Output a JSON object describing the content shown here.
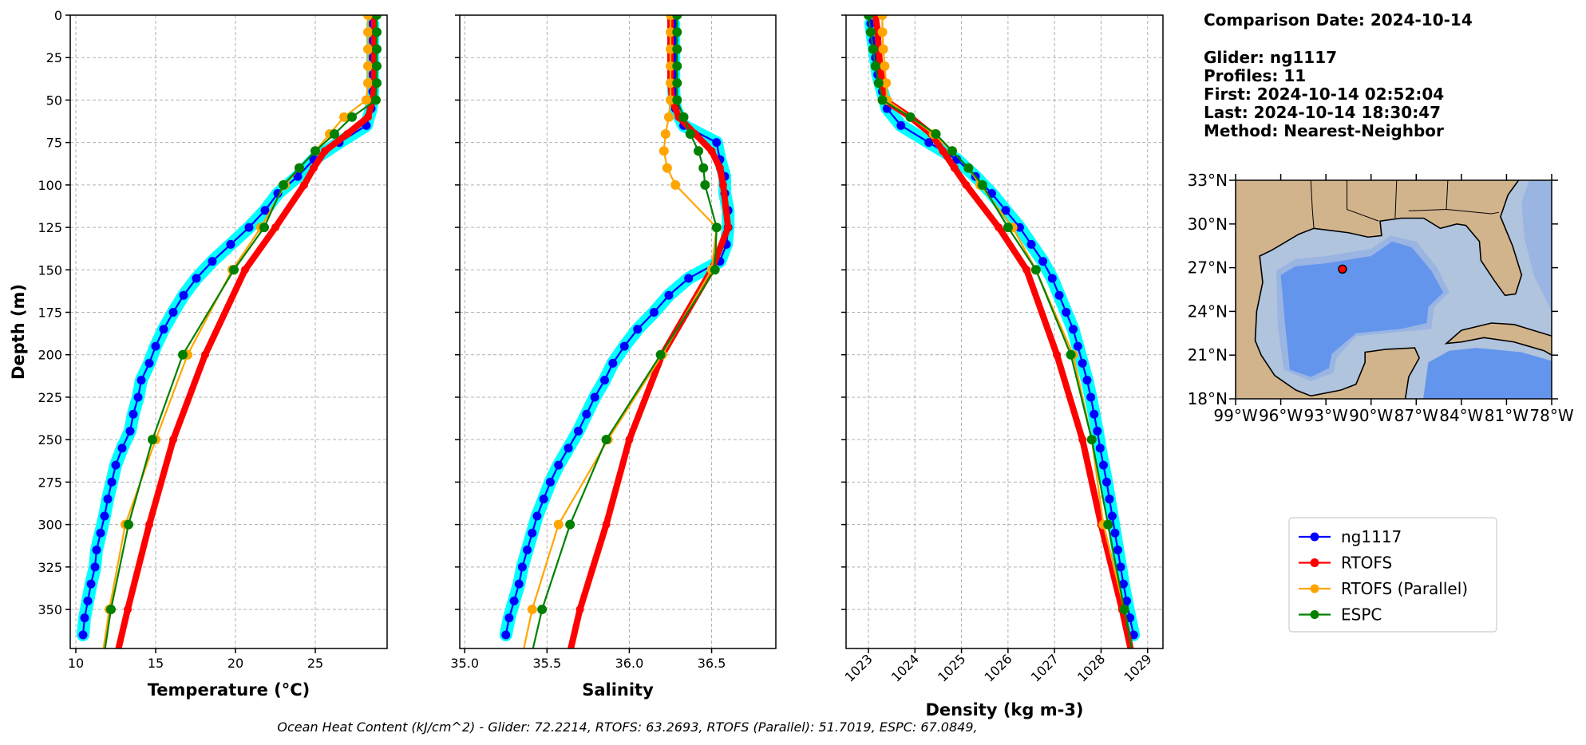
{
  "info": {
    "comparison_date": "Comparison Date: 2024-10-14",
    "glider": "Glider: ng1117",
    "profiles": "Profiles: 11",
    "first": "First: 2024-10-14 02:52:04",
    "last": "Last: 2024-10-14 18:30:47",
    "method": "Method: Nearest-Neighbor"
  },
  "footer": "Ocean Heat Content (kJ/cm^2) - Glider: 72.2214,  RTOFS: 63.2693,  RTOFS (Parallel): 51.7019,  ESPC: 67.0849,",
  "legend": {
    "placement": "lower-right",
    "entries": [
      {
        "label": "ng1117",
        "color": "#0000ff"
      },
      {
        "label": "RTOFS",
        "color": "#ff0000"
      },
      {
        "label": "RTOFS (Parallel)",
        "color": "#ffa500"
      },
      {
        "label": "ESPC",
        "color": "#008000"
      }
    ]
  },
  "colors": {
    "glider": "#0000ff",
    "glider_profiles": "#00ffff",
    "rtofs": "#ff0000",
    "rtofs_parallel": "#ffa500",
    "espc": "#008000"
  },
  "map": {
    "lon_range": [
      -99,
      -78
    ],
    "lat_range": [
      18,
      33
    ],
    "lat_ticks": [
      "33°N",
      "30°N",
      "27°N",
      "24°N",
      "21°N",
      "18°N"
    ],
    "lat_values": [
      33,
      30,
      27,
      24,
      21,
      18
    ],
    "lon_ticks": [
      "99°W",
      "96°W",
      "93°W",
      "90°W",
      "87°W",
      "84°W",
      "81°W",
      "78°W"
    ],
    "lon_values": [
      -99,
      -96,
      -93,
      -90,
      -87,
      -84,
      -81,
      -78
    ],
    "glider_location": {
      "lon": -91.9,
      "lat": 26.9
    },
    "colors": {
      "land": "#d2b48c",
      "shelf": "#b0c4de",
      "slope": "#9ab5e2",
      "deep": "#6495ed",
      "marker": "#ff0000"
    }
  },
  "chart_data": [
    {
      "type": "line",
      "xlabel": "Temperature (°C)",
      "ylabel": "Depth (m)",
      "xlim": [
        9.65,
        29.5
      ],
      "ylim": [
        373,
        0
      ],
      "xticks": [
        10,
        15,
        20,
        25
      ],
      "xtick_labels": [
        "10",
        "15",
        "20",
        "25"
      ],
      "yticks": [
        0,
        25,
        50,
        75,
        100,
        125,
        150,
        175,
        200,
        225,
        250,
        275,
        300,
        325,
        350
      ],
      "ytick_labels": [
        "0",
        "25",
        "50",
        "75",
        "100",
        "125",
        "150",
        "175",
        "200",
        "225",
        "250",
        "275",
        "300",
        "325",
        "350"
      ],
      "grid": true,
      "glider_depth": [
        5,
        15,
        25,
        35,
        45,
        55,
        65,
        75,
        85,
        95,
        105,
        115,
        125,
        135,
        145,
        155,
        165,
        175,
        185,
        195,
        205,
        215,
        225,
        235,
        245,
        255,
        265,
        275,
        285,
        295,
        305,
        315,
        325,
        335,
        345,
        355,
        365
      ],
      "model_depth": [
        0,
        10,
        20,
        30,
        40,
        50,
        60,
        70,
        80,
        90,
        100,
        125,
        150,
        200,
        250,
        300,
        350,
        400
      ],
      "series": [
        {
          "name": "ng1117",
          "values": [
            28.6,
            28.6,
            28.6,
            28.6,
            28.6,
            28.5,
            28.2,
            26.5,
            24.9,
            23.9,
            22.65,
            21.85,
            20.85,
            19.7,
            18.55,
            17.55,
            16.75,
            16.1,
            15.5,
            15.0,
            14.6,
            14.1,
            13.9,
            13.6,
            13.4,
            12.9,
            12.5,
            12.25,
            12.0,
            11.8,
            11.55,
            11.3,
            11.2,
            10.95,
            10.75,
            10.55,
            10.45
          ]
        },
        {
          "name": "RTOFS",
          "values": [
            28.7,
            28.7,
            28.7,
            28.7,
            28.7,
            28.6,
            28.3,
            27.0,
            25.6,
            24.9,
            24.3,
            22.5,
            20.6,
            18.1,
            16.1,
            14.6,
            13.25,
            12.0
          ]
        },
        {
          "name": "RTOFS (Parallel)",
          "values": [
            28.3,
            28.3,
            28.3,
            28.3,
            28.3,
            28.2,
            26.8,
            25.9,
            25.0,
            24.0,
            23.1,
            21.6,
            19.8,
            17.0,
            15.0,
            13.1,
            12.1,
            11.3
          ]
        },
        {
          "name": "ESPC",
          "values": [
            28.85,
            28.85,
            28.85,
            28.85,
            28.85,
            28.8,
            27.3,
            26.2,
            25.0,
            24.0,
            23.0,
            21.8,
            19.9,
            16.7,
            14.8,
            13.3,
            12.2,
            11.4
          ]
        }
      ]
    },
    {
      "type": "line",
      "xlabel": "Salinity",
      "xlim": [
        34.97,
        36.89
      ],
      "ylim": [
        373,
        0
      ],
      "xticks": [
        35.0,
        35.5,
        36.0,
        36.5
      ],
      "xtick_labels": [
        "35.0",
        "35.5",
        "36.0",
        "36.5"
      ],
      "grid": true,
      "series": [
        {
          "name": "ng1117",
          "values": [
            36.27,
            36.27,
            36.27,
            36.27,
            36.27,
            36.28,
            36.33,
            36.53,
            36.55,
            36.58,
            36.58,
            36.6,
            36.6,
            36.59,
            36.55,
            36.36,
            36.24,
            36.15,
            36.05,
            35.97,
            35.9,
            35.85,
            35.79,
            35.74,
            35.69,
            35.63,
            35.57,
            35.52,
            35.48,
            35.44,
            35.41,
            35.38,
            35.35,
            35.33,
            35.3,
            35.27,
            35.25
          ]
        },
        {
          "name": "RTOFS",
          "values": [
            36.25,
            36.25,
            36.25,
            36.25,
            36.25,
            36.26,
            36.3,
            36.4,
            36.5,
            36.55,
            36.57,
            36.6,
            36.5,
            36.2,
            36.0,
            35.86,
            35.7,
            35.58
          ]
        },
        {
          "name": "RTOFS (Parallel)",
          "values": [
            36.25,
            36.25,
            36.25,
            36.25,
            36.25,
            36.25,
            36.24,
            36.22,
            36.21,
            36.23,
            36.28,
            36.53,
            36.5,
            36.2,
            35.87,
            35.57,
            35.41,
            35.3
          ]
        },
        {
          "name": "ESPC",
          "values": [
            36.29,
            36.29,
            36.29,
            36.29,
            36.29,
            36.29,
            36.33,
            36.37,
            36.42,
            36.45,
            36.46,
            36.53,
            36.52,
            36.19,
            35.86,
            35.64,
            35.47,
            35.35
          ]
        }
      ]
    },
    {
      "type": "line",
      "xlabel": "Density (kg m-3)",
      "xlim": [
        1022.52,
        1029.33
      ],
      "ylim": [
        373,
        0
      ],
      "xticks": [
        1023,
        1024,
        1025,
        1026,
        1027,
        1028,
        1029
      ],
      "xtick_labels": [
        "1023",
        "1024",
        "1025",
        "1026",
        "1027",
        "1028",
        "1029"
      ],
      "grid": true,
      "series": [
        {
          "name": "ng1117",
          "values": [
            1023.05,
            1023.1,
            1023.15,
            1023.2,
            1023.3,
            1023.4,
            1023.7,
            1024.3,
            1024.9,
            1025.3,
            1025.65,
            1025.95,
            1026.25,
            1026.5,
            1026.75,
            1026.95,
            1027.1,
            1027.25,
            1027.4,
            1027.5,
            1027.6,
            1027.7,
            1027.78,
            1027.85,
            1027.92,
            1027.98,
            1028.05,
            1028.12,
            1028.18,
            1028.24,
            1028.3,
            1028.36,
            1028.42,
            1028.48,
            1028.55,
            1028.62,
            1028.7
          ]
        },
        {
          "name": "RTOFS",
          "values": [
            1023.15,
            1023.2,
            1023.22,
            1023.25,
            1023.3,
            1023.35,
            1023.9,
            1024.35,
            1024.6,
            1024.85,
            1025.1,
            1025.8,
            1026.4,
            1027.05,
            1027.6,
            1028.0,
            1028.45,
            1028.85
          ]
        },
        {
          "name": "RTOFS (Parallel)",
          "values": [
            1023.3,
            1023.3,
            1023.32,
            1023.35,
            1023.38,
            1023.4,
            1023.9,
            1024.4,
            1024.8,
            1025.15,
            1025.4,
            1026.1,
            1026.6,
            1027.4,
            1027.8,
            1028.05,
            1028.5,
            1028.85
          ]
        },
        {
          "name": "ESPC",
          "values": [
            1023.0,
            1023.05,
            1023.1,
            1023.15,
            1023.22,
            1023.3,
            1023.9,
            1024.45,
            1024.8,
            1025.15,
            1025.45,
            1026.0,
            1026.6,
            1027.35,
            1027.8,
            1028.15,
            1028.5,
            1028.85
          ]
        }
      ]
    }
  ]
}
